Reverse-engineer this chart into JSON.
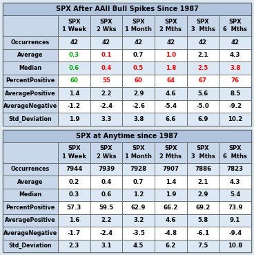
{
  "title1": "SPX After AAII Bull Spikes Since 1987",
  "title2": "SPX at Anytime since 1987",
  "col_headers": [
    "SPX\n1 Week",
    "SPX\n2 Wks",
    "SPX\n1 Month",
    "SPX\n2 Mths",
    "SPX\n3  Mths",
    "SPX\n6  Mths"
  ],
  "row_labels": [
    "Occurrences",
    "Average",
    "Median",
    "PercentPositive",
    "AveragePositive",
    "AverageNegative",
    "Std_Deviation"
  ],
  "table1_data": [
    [
      "42",
      "42",
      "42",
      "42",
      "42",
      "42"
    ],
    [
      "0.3",
      "0.1",
      "0.7",
      "1.0",
      "2.1",
      "4.3"
    ],
    [
      "0.6",
      "0.4",
      "0.5",
      "1.8",
      "2.5",
      "3.8"
    ],
    [
      "60",
      "55",
      "60",
      "64",
      "67",
      "76"
    ],
    [
      "1.4",
      "2.2",
      "2.9",
      "4.6",
      "5.6",
      "8.5"
    ],
    [
      "-1.2",
      "-2.4",
      "-2.6",
      "-5.4",
      "-5.0",
      "-9.2"
    ],
    [
      "1.9",
      "3.3",
      "3.8",
      "6.6",
      "6.9",
      "10.2"
    ]
  ],
  "table2_data": [
    [
      "7944",
      "7939",
      "7928",
      "7907",
      "7886",
      "7823"
    ],
    [
      "0.2",
      "0.4",
      "0.7",
      "1.4",
      "2.1",
      "4.3"
    ],
    [
      "0.3",
      "0.6",
      "1.2",
      "1.9",
      "2.9",
      "5.4"
    ],
    [
      "57.3",
      "59.5",
      "62.9",
      "66.2",
      "69.2",
      "73.9"
    ],
    [
      "1.6",
      "2.2",
      "3.2",
      "4.6",
      "5.8",
      "9.1"
    ],
    [
      "-1.7",
      "-2.4",
      "-3.5",
      "-4.8",
      "-6.1",
      "-9.4"
    ],
    [
      "2.3",
      "3.1",
      "4.5",
      "6.2",
      "7.5",
      "10.8"
    ]
  ],
  "table1_colors": [
    [
      "#000000",
      "#000000",
      "#000000",
      "#000000",
      "#000000",
      "#000000"
    ],
    [
      "#00aa00",
      "#ff0000",
      "#000000",
      "#ff0000",
      "#000000",
      "#000000"
    ],
    [
      "#00aa00",
      "#ff0000",
      "#ff0000",
      "#ff0000",
      "#ff0000",
      "#ff0000"
    ],
    [
      "#00aa00",
      "#ff0000",
      "#ff0000",
      "#ff0000",
      "#ff0000",
      "#ff0000"
    ],
    [
      "#000000",
      "#000000",
      "#000000",
      "#000000",
      "#000000",
      "#000000"
    ],
    [
      "#000000",
      "#000000",
      "#000000",
      "#000000",
      "#000000",
      "#000000"
    ],
    [
      "#000000",
      "#000000",
      "#000000",
      "#000000",
      "#000000",
      "#000000"
    ]
  ],
  "table2_colors": [
    [
      "#000000",
      "#000000",
      "#000000",
      "#000000",
      "#000000",
      "#000000"
    ],
    [
      "#000000",
      "#000000",
      "#000000",
      "#000000",
      "#000000",
      "#000000"
    ],
    [
      "#000000",
      "#000000",
      "#000000",
      "#000000",
      "#000000",
      "#000000"
    ],
    [
      "#000000",
      "#000000",
      "#000000",
      "#000000",
      "#000000",
      "#000000"
    ],
    [
      "#000000",
      "#000000",
      "#000000",
      "#000000",
      "#000000",
      "#000000"
    ],
    [
      "#000000",
      "#000000",
      "#000000",
      "#000000",
      "#000000",
      "#000000"
    ],
    [
      "#000000",
      "#000000",
      "#000000",
      "#000000",
      "#000000",
      "#000000"
    ]
  ],
  "header_bg": "#c8d8ea",
  "title_bg": "#b0c4de",
  "row_bg_even": "#dce9f5",
  "row_bg_odd": "#ffffff",
  "gap_bg": "#e8eef5",
  "outer_bg": "#dce8f0",
  "border_color": "#555555",
  "title_fontsize": 7.0,
  "header_fontsize": 6.0,
  "cell_fontsize": 6.2,
  "label_fontsize": 5.8
}
